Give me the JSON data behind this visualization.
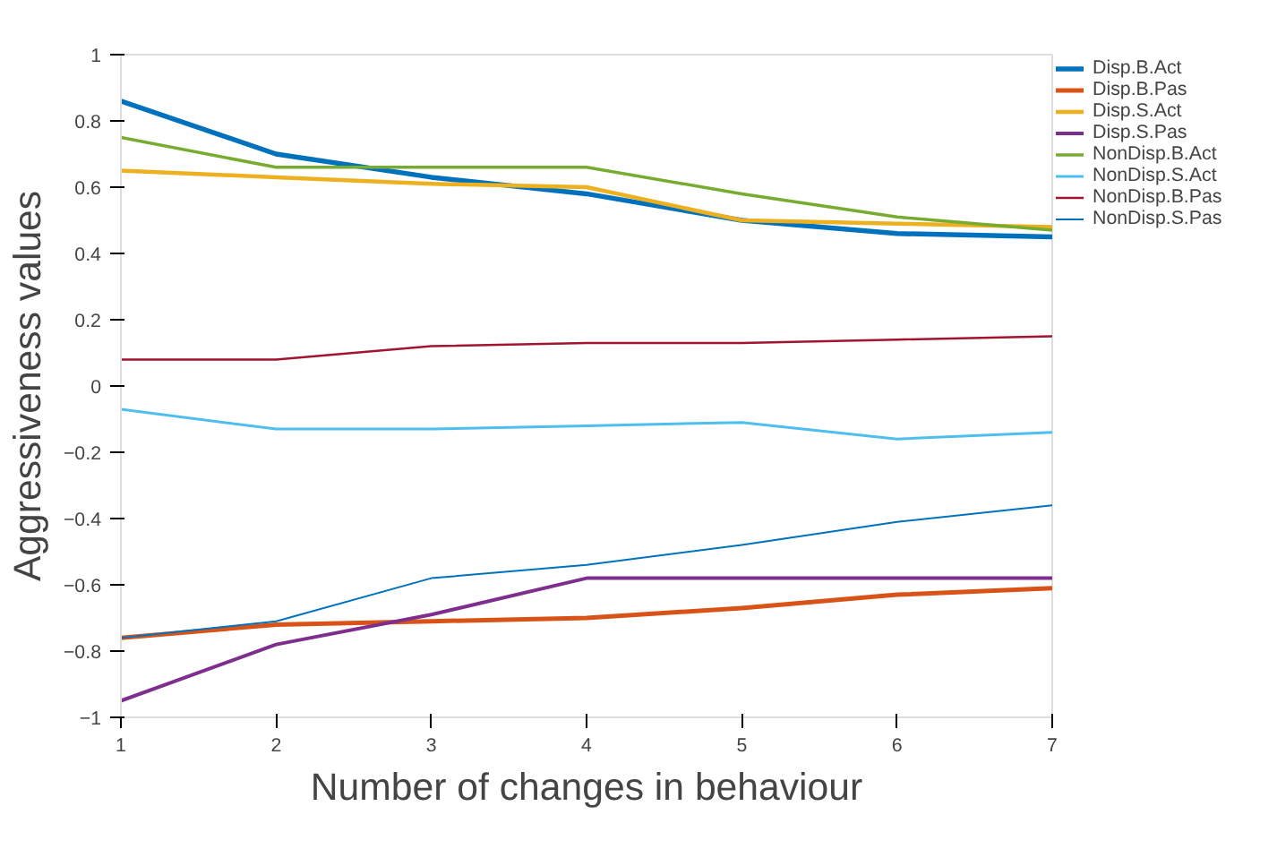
{
  "chart_data": {
    "type": "line",
    "xlabel": "Number of changes in behaviour",
    "ylabel": "Aggressiveness values",
    "x": [
      1,
      2,
      3,
      4,
      5,
      6,
      7
    ],
    "series": [
      {
        "name": "Disp.B.Act",
        "color": "#0072bd",
        "values": [
          0.86,
          0.7,
          0.63,
          0.58,
          0.5,
          0.46,
          0.45
        ]
      },
      {
        "name": "Disp.B.Pas",
        "color": "#d95319",
        "values": [
          -0.76,
          -0.72,
          -0.71,
          -0.7,
          -0.67,
          -0.63,
          -0.61
        ]
      },
      {
        "name": "Disp.S.Act",
        "color": "#edb120",
        "values": [
          0.65,
          0.63,
          0.61,
          0.6,
          0.5,
          0.49,
          0.48
        ]
      },
      {
        "name": "Disp.S.Pas",
        "color": "#7e2f8e",
        "values": [
          -0.95,
          -0.78,
          -0.69,
          -0.58,
          -0.58,
          -0.58,
          -0.58
        ]
      },
      {
        "name": "NonDisp.B.Act",
        "color": "#77ac30",
        "values": [
          0.75,
          0.66,
          0.66,
          0.66,
          0.58,
          0.51,
          0.47
        ]
      },
      {
        "name": "NonDisp.S.Act",
        "color": "#4dbeee",
        "values": [
          -0.07,
          -0.13,
          -0.13,
          -0.12,
          -0.11,
          -0.16,
          -0.14
        ]
      },
      {
        "name": "NonDisp.B.Pas",
        "color": "#a2142f",
        "values": [
          0.08,
          0.08,
          0.12,
          0.13,
          0.13,
          0.14,
          0.15
        ]
      },
      {
        "name": "NonDisp.S.Pas",
        "color": "#0072bd",
        "values": [
          -0.76,
          -0.71,
          -0.58,
          -0.54,
          -0.48,
          -0.41,
          -0.36
        ]
      }
    ],
    "xlim": [
      1,
      7
    ],
    "xticks": [
      1,
      2,
      3,
      4,
      5,
      6,
      7
    ],
    "ylim": [
      -1,
      1
    ],
    "yticks": [
      -1,
      -0.8,
      -0.6,
      -0.4,
      -0.2,
      0,
      0.2,
      0.4,
      0.6,
      0.8,
      1
    ],
    "grid": false,
    "legend": "top right",
    "marker": "none",
    "line_style": "solid"
  }
}
